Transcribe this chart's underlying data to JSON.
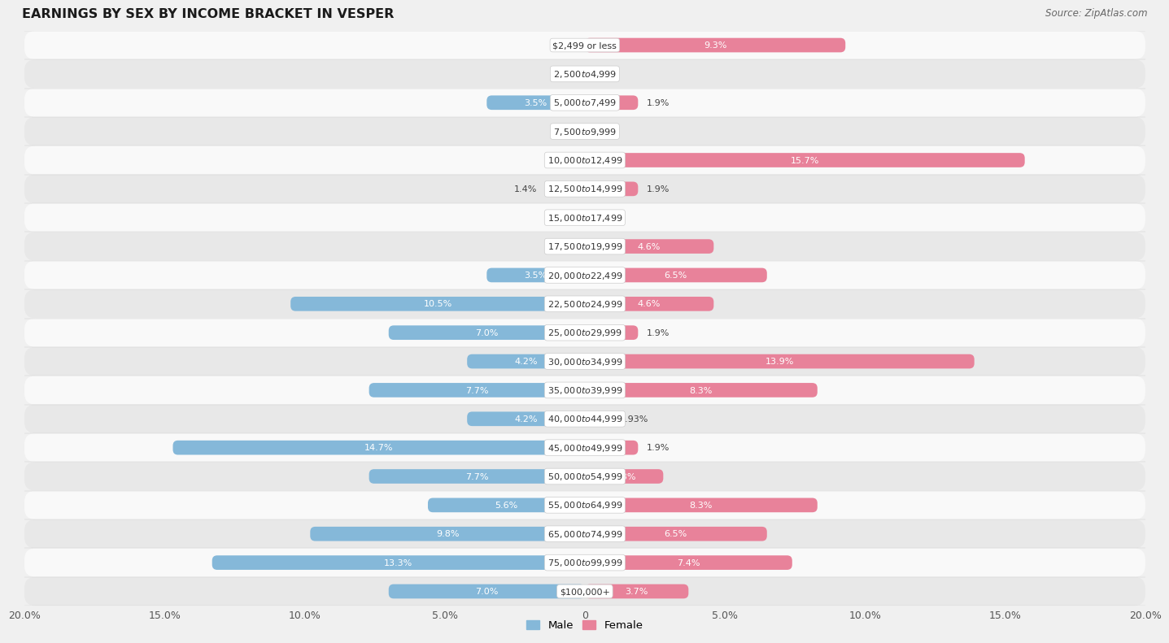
{
  "title": "EARNINGS BY SEX BY INCOME BRACKET IN VESPER",
  "source": "Source: ZipAtlas.com",
  "categories": [
    "$2,499 or less",
    "$2,500 to $4,999",
    "$5,000 to $7,499",
    "$7,500 to $9,999",
    "$10,000 to $12,499",
    "$12,500 to $14,999",
    "$15,000 to $17,499",
    "$17,500 to $19,999",
    "$20,000 to $22,499",
    "$22,500 to $24,999",
    "$25,000 to $29,999",
    "$30,000 to $34,999",
    "$35,000 to $39,999",
    "$40,000 to $44,999",
    "$45,000 to $49,999",
    "$50,000 to $54,999",
    "$55,000 to $64,999",
    "$65,000 to $74,999",
    "$75,000 to $99,999",
    "$100,000+"
  ],
  "male": [
    0.0,
    0.0,
    3.5,
    0.0,
    0.0,
    1.4,
    0.0,
    0.0,
    3.5,
    10.5,
    7.0,
    4.2,
    7.7,
    4.2,
    14.7,
    7.7,
    5.6,
    9.8,
    13.3,
    7.0
  ],
  "female": [
    9.3,
    0.0,
    1.9,
    0.0,
    15.7,
    1.9,
    0.0,
    4.6,
    6.5,
    4.6,
    1.9,
    13.9,
    8.3,
    0.93,
    1.9,
    2.8,
    8.3,
    6.5,
    7.4,
    3.7
  ],
  "male_color": "#85b8d9",
  "female_color": "#e8829a",
  "xlim": 20.0,
  "background_color": "#f0f0f0",
  "row_colors": [
    "#f9f9f9",
    "#e8e8e8"
  ],
  "bar_height": 0.5,
  "label_inside_threshold": 2.5,
  "tick_positions": [
    -20,
    -15,
    -10,
    -5,
    0,
    5,
    10,
    15,
    20
  ],
  "tick_labels": [
    "20.0%",
    "15.0%",
    "10.0%",
    "5.0%",
    "0",
    "5.0%",
    "10.0%",
    "15.0%",
    "20.0%"
  ]
}
